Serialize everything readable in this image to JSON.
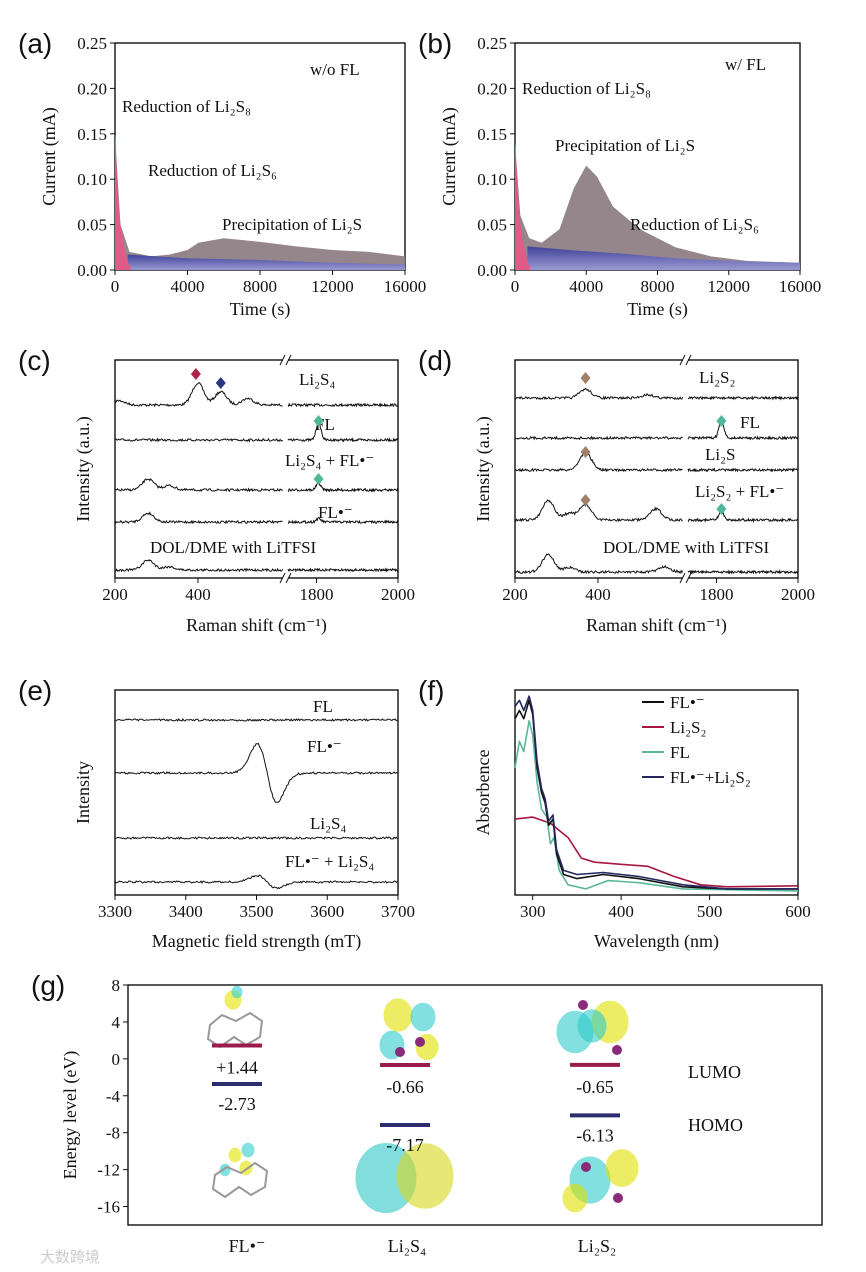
{
  "colors": {
    "li2s8": "#e45a86",
    "li2s6": "#4b4fa3",
    "li2s": "#8e7f84",
    "lumo": "#9b1b4b",
    "homo": "#2b2d6e",
    "fl_green": "#4fb89a",
    "brown": "#a0806a",
    "red_marker": "#b3214b",
    "blue_marker": "#2e3580",
    "uv_black": "#111111",
    "uv_red": "#a8173f",
    "uv_teal": "#5bb79c",
    "uv_navy": "#25275e"
  },
  "watermark": "大数跨境",
  "chart_data": [
    {
      "id": "a",
      "panel_label": "(a)",
      "type": "area",
      "title": "w/o FL",
      "xlabel": "Time (s)",
      "ylabel": "Current (mA)",
      "xlim": [
        0,
        16000
      ],
      "ylim": [
        0,
        0.25
      ],
      "xticks": [
        "0",
        "4000",
        "8000",
        "12000",
        "16000"
      ],
      "yticks": [
        "0.00",
        "0.05",
        "0.10",
        "0.15",
        "0.20",
        "0.25"
      ],
      "series": [
        {
          "name": "Precipitation of Li₂S",
          "color_key": "li2s",
          "points": [
            [
              0,
              0.15
            ],
            [
              300,
              0.05
            ],
            [
              800,
              0.02
            ],
            [
              2000,
              0.015
            ],
            [
              3000,
              0.017
            ],
            [
              4000,
              0.022
            ],
            [
              4600,
              0.03
            ],
            [
              6000,
              0.035
            ],
            [
              7000,
              0.033
            ],
            [
              8000,
              0.031
            ],
            [
              10000,
              0.026
            ],
            [
              12000,
              0.022
            ],
            [
              14000,
              0.02
            ],
            [
              16000,
              0.015
            ]
          ]
        },
        {
          "name": "Reduction of Li₂S₆",
          "color_key": "li2s6",
          "points": [
            [
              700,
              0.017
            ],
            [
              4000,
              0.013
            ],
            [
              8000,
              0.011
            ],
            [
              12000,
              0.008
            ],
            [
              16000,
              0.006
            ]
          ]
        },
        {
          "name": "Reduction of Li₂S₈",
          "color_key": "li2s8",
          "points": [
            [
              0,
              0.15
            ],
            [
              150,
              0.09
            ],
            [
              300,
              0.05
            ],
            [
              500,
              0.025
            ],
            [
              700,
              0.01
            ],
            [
              900,
              0
            ]
          ]
        }
      ]
    },
    {
      "id": "b",
      "panel_label": "(b)",
      "type": "area",
      "title": "w/ FL",
      "xlabel": "Time (s)",
      "ylabel": "Current (mA)",
      "xlim": [
        0,
        16000
      ],
      "ylim": [
        0,
        0.25
      ],
      "xticks": [
        "0",
        "4000",
        "8000",
        "12000",
        "16000"
      ],
      "yticks": [
        "0.00",
        "0.05",
        "0.10",
        "0.15",
        "0.20",
        "0.25"
      ],
      "series": [
        {
          "name": "Precipitation of Li₂S",
          "color_key": "li2s",
          "points": [
            [
              0,
              0.14
            ],
            [
              300,
              0.06
            ],
            [
              800,
              0.035
            ],
            [
              1500,
              0.03
            ],
            [
              2500,
              0.045
            ],
            [
              3300,
              0.09
            ],
            [
              4000,
              0.115
            ],
            [
              4600,
              0.103
            ],
            [
              5500,
              0.07
            ],
            [
              7000,
              0.045
            ],
            [
              9000,
              0.025
            ],
            [
              11000,
              0.015
            ],
            [
              13000,
              0.01
            ],
            [
              16000,
              0.008
            ]
          ]
        },
        {
          "name": "Reduction of Li₂S₆",
          "color_key": "li2s6",
          "points": [
            [
              700,
              0.026
            ],
            [
              3000,
              0.022
            ],
            [
              6000,
              0.018
            ],
            [
              9000,
              0.013
            ],
            [
              12000,
              0.01
            ],
            [
              16000,
              0.008
            ]
          ]
        },
        {
          "name": "Reduction of Li₂S₈",
          "color_key": "li2s8",
          "points": [
            [
              0,
              0.14
            ],
            [
              150,
              0.09
            ],
            [
              300,
              0.05
            ],
            [
              500,
              0.025
            ],
            [
              700,
              0.01
            ],
            [
              900,
              0
            ]
          ]
        }
      ]
    },
    {
      "id": "c",
      "panel_label": "(c)",
      "type": "line",
      "xlabel": "Raman shift (cm⁻¹)",
      "ylabel": "Intensity (a.u.)",
      "xlim": [
        200,
        2000
      ],
      "axis_break": [
        605,
        1730
      ],
      "xticks": [
        "200",
        "400",
        "1800",
        "2000"
      ],
      "series": [
        {
          "name": "Li₂S₄",
          "peaks": [
            [
              400,
              1.0
            ],
            [
              455,
              0.6
            ],
            [
              520,
              0.3
            ],
            [
              210,
              0.2
            ]
          ]
        },
        {
          "name": "FL",
          "peaks": [
            [
              1805,
              0.8
            ]
          ]
        },
        {
          "name": "Li₂S₄ + FL•⁻",
          "peaks": [
            [
              280,
              0.5
            ],
            [
              330,
              0.2
            ],
            [
              1805,
              0.3
            ]
          ]
        },
        {
          "name": "FL•⁻",
          "peaks": [
            [
              280,
              0.4
            ],
            [
              1805,
              0.15
            ]
          ]
        },
        {
          "name": "DOL/DME with LiTFSI",
          "peaks": [
            [
              280,
              0.45
            ],
            [
              330,
              0.15
            ]
          ]
        }
      ]
    },
    {
      "id": "d",
      "panel_label": "(d)",
      "type": "line",
      "xlabel": "Raman shift (cm⁻¹)",
      "ylabel": "Intensity (a.u.)",
      "xlim": [
        200,
        2000
      ],
      "axis_break": [
        605,
        1730
      ],
      "xticks": [
        "200",
        "400",
        "1800",
        "2000"
      ],
      "series": [
        {
          "name": "Li₂S₂",
          "peaks": [
            [
              370,
              0.4
            ],
            [
              520,
              0.15
            ]
          ]
        },
        {
          "name": "FL",
          "peaks": [
            [
              1812,
              0.8
            ]
          ]
        },
        {
          "name": "Li₂S",
          "peaks": [
            [
              370,
              0.8
            ]
          ]
        },
        {
          "name": "Li₂S₂ + FL•⁻",
          "peaks": [
            [
              280,
              0.9
            ],
            [
              370,
              0.7
            ],
            [
              330,
              0.3
            ],
            [
              540,
              0.5
            ],
            [
              1812,
              0.4
            ]
          ]
        },
        {
          "name": "DOL/DME with LiTFSI",
          "peaks": [
            [
              280,
              0.8
            ],
            [
              330,
              0.2
            ],
            [
              560,
              0.25
            ]
          ]
        }
      ]
    },
    {
      "id": "e",
      "panel_label": "(e)",
      "type": "line",
      "xlabel": "Magnetic field strength (mT)",
      "ylabel": "Intensity",
      "xlim": [
        3300,
        3700
      ],
      "xticks": [
        "3300",
        "3400",
        "3500",
        "3600",
        "3700"
      ],
      "signal_center": 3515,
      "series": [
        {
          "name": "FL",
          "signal": 0
        },
        {
          "name": "FL•⁻",
          "signal": 1
        },
        {
          "name": "Li₂S₄",
          "signal": 0
        },
        {
          "name": "FL•⁻ + Li₂S₄",
          "signal": 0.22
        }
      ]
    },
    {
      "id": "f",
      "panel_label": "(f)",
      "type": "line",
      "xlabel": "Wavelength (nm)",
      "ylabel": "Absorbence",
      "xlim": [
        280,
        600
      ],
      "ylim": [
        0,
        1
      ],
      "xticks": [
        "300",
        "400",
        "500",
        "600"
      ],
      "legend": "top-right",
      "series": [
        {
          "name": "FL•⁻",
          "color_key": "uv_black",
          "points": [
            [
              280,
              0.86
            ],
            [
              285,
              0.9
            ],
            [
              290,
              0.86
            ],
            [
              296,
              0.95
            ],
            [
              300,
              0.88
            ],
            [
              305,
              0.62
            ],
            [
              310,
              0.5
            ],
            [
              314,
              0.45
            ],
            [
              318,
              0.34
            ],
            [
              323,
              0.37
            ],
            [
              327,
              0.2
            ],
            [
              335,
              0.1
            ],
            [
              350,
              0.08
            ],
            [
              380,
              0.1
            ],
            [
              420,
              0.08
            ],
            [
              470,
              0.04
            ],
            [
              520,
              0.03
            ],
            [
              600,
              0.03
            ]
          ]
        },
        {
          "name": "Li₂S₂",
          "color_key": "uv_red",
          "points": [
            [
              280,
              0.37
            ],
            [
              300,
              0.38
            ],
            [
              320,
              0.35
            ],
            [
              340,
              0.28
            ],
            [
              355,
              0.18
            ],
            [
              370,
              0.16
            ],
            [
              400,
              0.15
            ],
            [
              430,
              0.14
            ],
            [
              460,
              0.09
            ],
            [
              490,
              0.05
            ],
            [
              520,
              0.04
            ],
            [
              600,
              0.045
            ]
          ]
        },
        {
          "name": "FL",
          "color_key": "uv_teal",
          "points": [
            [
              280,
              0.62
            ],
            [
              285,
              0.75
            ],
            [
              290,
              0.7
            ],
            [
              296,
              0.85
            ],
            [
              300,
              0.78
            ],
            [
              305,
              0.55
            ],
            [
              310,
              0.42
            ],
            [
              316,
              0.38
            ],
            [
              320,
              0.25
            ],
            [
              324,
              0.28
            ],
            [
              330,
              0.12
            ],
            [
              340,
              0.05
            ],
            [
              360,
              0.03
            ],
            [
              385,
              0.07
            ],
            [
              420,
              0.06
            ],
            [
              470,
              0.03
            ],
            [
              600,
              0.02
            ]
          ]
        },
        {
          "name": "FL•⁻+Li₂S₂",
          "color_key": "uv_navy",
          "points": [
            [
              280,
              0.92
            ],
            [
              285,
              0.95
            ],
            [
              290,
              0.9
            ],
            [
              296,
              0.97
            ],
            [
              300,
              0.9
            ],
            [
              305,
              0.65
            ],
            [
              310,
              0.52
            ],
            [
              314,
              0.47
            ],
            [
              318,
              0.36
            ],
            [
              323,
              0.39
            ],
            [
              327,
              0.22
            ],
            [
              335,
              0.12
            ],
            [
              350,
              0.1
            ],
            [
              380,
              0.11
            ],
            [
              420,
              0.09
            ],
            [
              470,
              0.05
            ],
            [
              520,
              0.03
            ],
            [
              600,
              0.03
            ]
          ]
        }
      ]
    },
    {
      "id": "g",
      "panel_label": "(g)",
      "type": "bar",
      "ylabel": "Energy level (eV)",
      "ylim": [
        -18,
        8
      ],
      "yticks": [
        "8",
        "4",
        "0",
        "-4",
        "-8",
        "-12",
        "-16"
      ],
      "categories": [
        "FL•⁻",
        "Li₂S₄",
        "Li₂S₂"
      ],
      "lumo": {
        "label": "LUMO",
        "values": [
          1.44,
          -0.66,
          -0.65
        ],
        "labels": [
          "+1.44",
          "-0.66",
          "-0.65"
        ]
      },
      "homo": {
        "label": "HOMO",
        "values": [
          -2.73,
          -7.17,
          -6.13
        ],
        "labels": [
          "-2.73",
          "-7.17",
          "-6.13"
        ]
      }
    }
  ]
}
